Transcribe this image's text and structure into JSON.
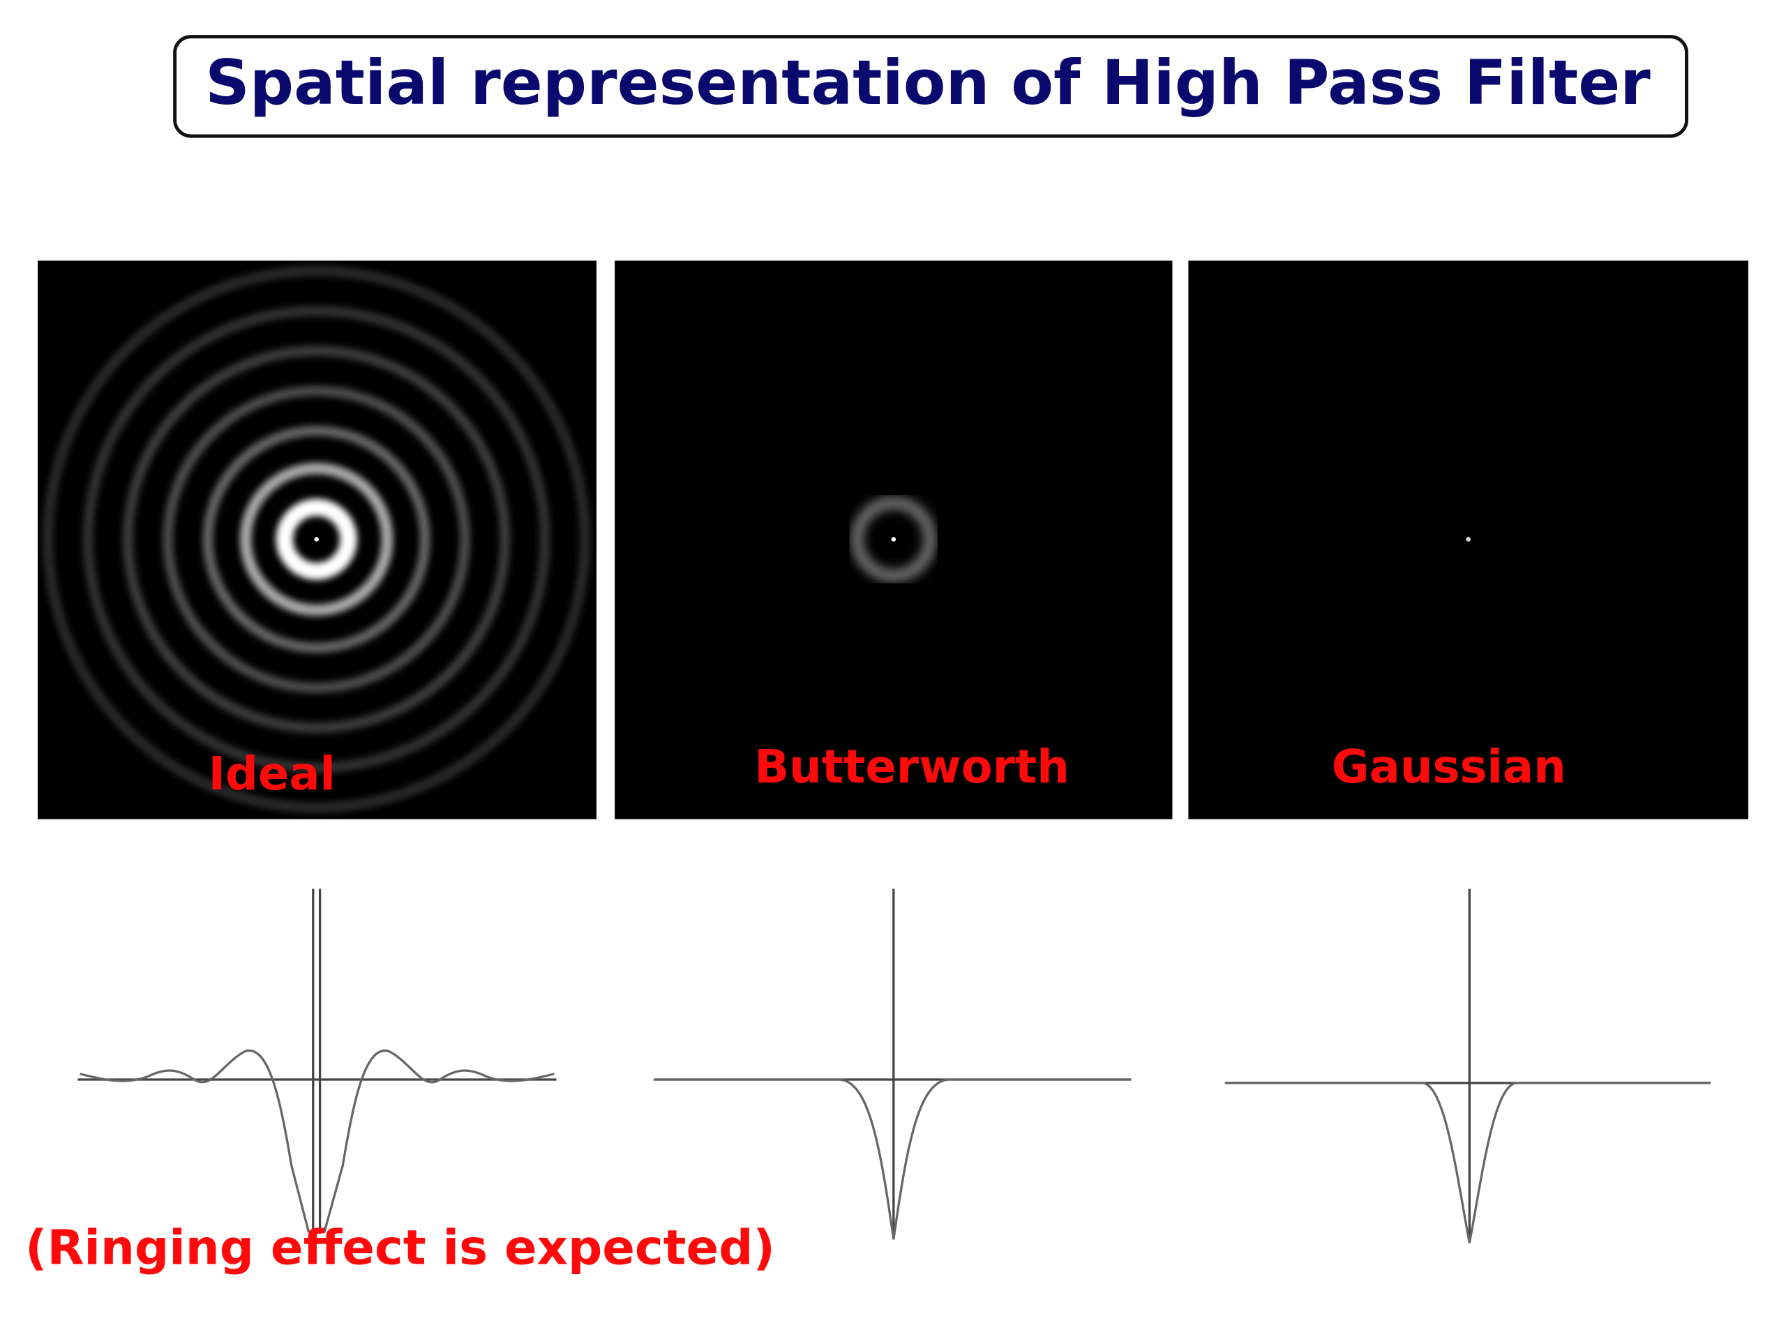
{
  "header": {
    "title": "Spatial representation of High Pass Filter"
  },
  "panels": [
    {
      "label": "Ideal"
    },
    {
      "label": "Butterworth"
    },
    {
      "label": "Gaussian"
    }
  ],
  "note": "(Ringing effect is expected)"
}
